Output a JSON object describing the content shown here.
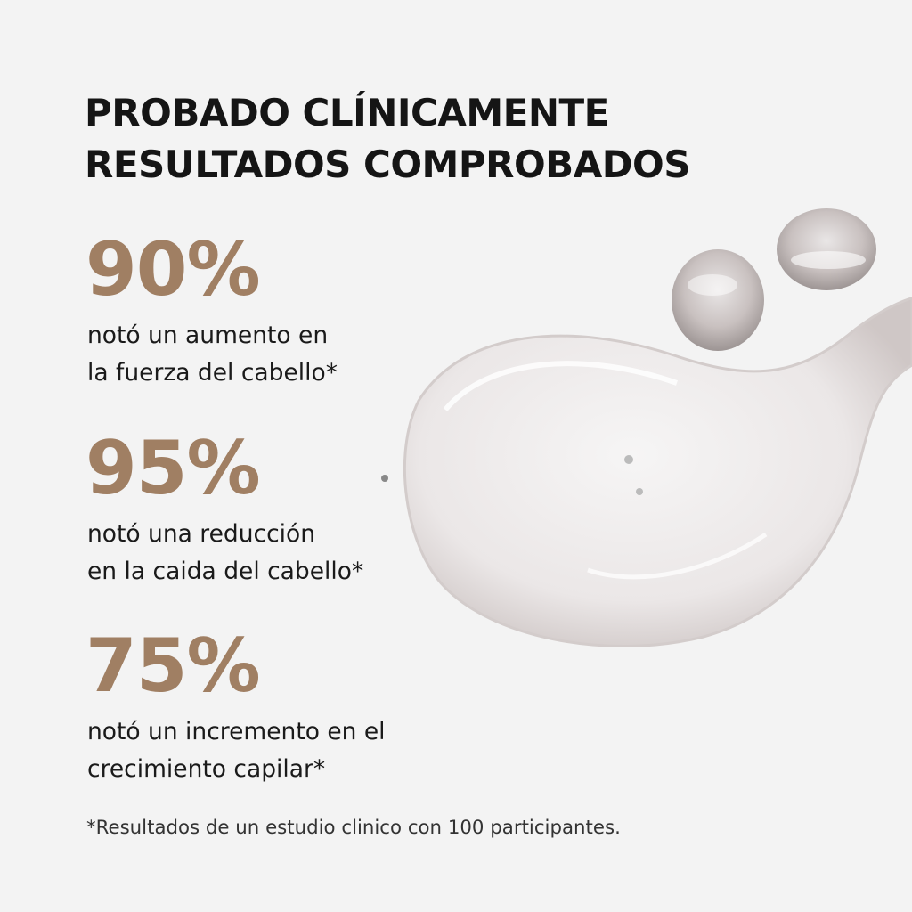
{
  "title": {
    "line1": "PROBADO CLÍNICAMENTE",
    "line2": "RESULTADOS COMPROBADOS"
  },
  "accent_color": "#a07f63",
  "stats": [
    {
      "value": "90%",
      "line1": "notó un aumento en",
      "line2": "la fuerza del cabello*"
    },
    {
      "value": "95%",
      "line1": "notó una reducción",
      "line2": "en la caida del cabello*"
    },
    {
      "value": "75%",
      "line1": "notó un incremento en el",
      "line2": "crecimiento capilar*"
    }
  ],
  "footnote": "*Resultados de un estudio clinico con 100 participantes.",
  "image": "serum-drop-illustration"
}
